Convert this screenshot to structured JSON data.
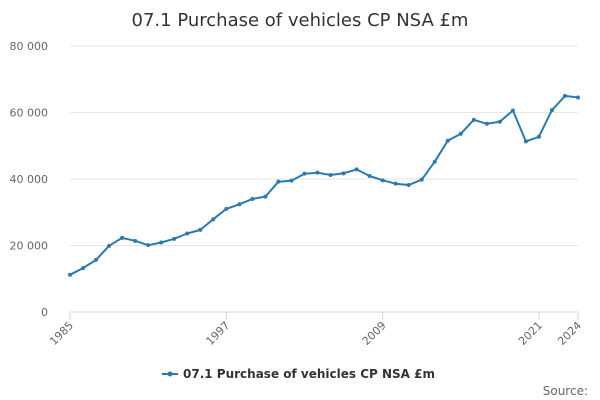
{
  "chart_data": {
    "type": "line",
    "title": "07.1 Purchase of vehicles CP NSA £m",
    "xlabel": "",
    "ylabel": "",
    "ylim": [
      0,
      80000
    ],
    "yticks": [
      0,
      20000,
      40000,
      60000,
      80000
    ],
    "ytick_labels": [
      "0",
      "20 000",
      "40 000",
      "60 000",
      "80 000"
    ],
    "xlim": [
      1985,
      2024
    ],
    "xticks": [
      1985,
      1997,
      2009,
      2021,
      2024
    ],
    "xtick_labels": [
      "1985",
      "1997",
      "2009",
      "2021",
      "2024"
    ],
    "grid": true,
    "legend_position": "bottom-center",
    "series": [
      {
        "name": "07.1 Purchase of vehicles CP NSA £m",
        "color": "#2a7ab0",
        "x": [
          1985,
          1986,
          1987,
          1988,
          1989,
          1990,
          1991,
          1992,
          1993,
          1994,
          1995,
          1996,
          1997,
          1998,
          1999,
          2000,
          2001,
          2002,
          2003,
          2004,
          2005,
          2006,
          2007,
          2008,
          2009,
          2010,
          2011,
          2012,
          2013,
          2014,
          2015,
          2016,
          2017,
          2018,
          2019,
          2020,
          2021,
          2022,
          2023,
          2024
        ],
        "values": [
          11200,
          13200,
          15700,
          19900,
          22300,
          21400,
          20100,
          20900,
          22000,
          23600,
          24700,
          27900,
          31000,
          32400,
          34000,
          34700,
          39200,
          39500,
          41600,
          41900,
          41200,
          41700,
          42900,
          40900,
          39600,
          38600,
          38200,
          39800,
          45200,
          51500,
          53600,
          57800,
          56600,
          57200,
          60600,
          51300,
          52700,
          60700,
          65000,
          64500
        ]
      }
    ]
  },
  "legend": {
    "label": "07.1 Purchase of vehicles CP NSA £m"
  },
  "footer": {
    "source_label": "Source:"
  }
}
